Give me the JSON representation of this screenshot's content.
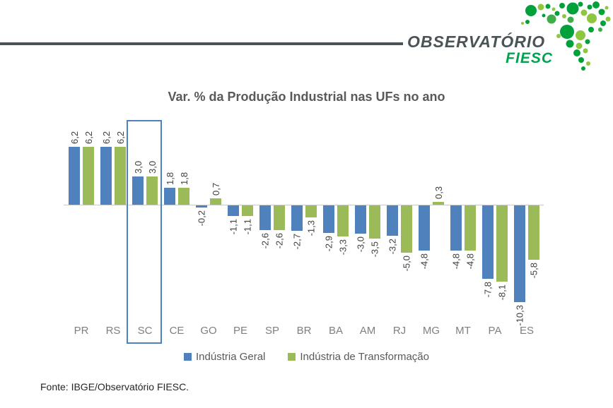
{
  "header": {
    "brand_primary": "OBSERVATÓRIO",
    "brand_secondary": "FIESC",
    "brand_colors": {
      "dark": "#4A5356",
      "fiesc_green": "#00A44F",
      "dot_dark": "#00A13A",
      "dot_mid": "#3FAE49",
      "dot_light": "#8DC63F"
    }
  },
  "chart_data": {
    "type": "bar",
    "title": "Var. % da Produção Industrial nas UFs no ano",
    "categories": [
      "PR",
      "RS",
      "SC",
      "CE",
      "GO",
      "PE",
      "SP",
      "BR",
      "BA",
      "AM",
      "RJ",
      "MG",
      "MT",
      "PA",
      "ES"
    ],
    "series": [
      {
        "name": "Indústria Geral",
        "color": "#4F81BD",
        "values": [
          6.2,
          6.2,
          3.0,
          1.8,
          -0.2,
          -1.1,
          -2.6,
          -2.7,
          -2.9,
          -3.0,
          -3.2,
          -4.8,
          -4.8,
          -7.8,
          -10.3
        ],
        "labels": [
          "6,2",
          "6,2",
          "3,0",
          "1,8",
          "-0,2",
          "-1,1",
          "-2,6",
          "-2,7",
          "-2,9",
          "-3,0",
          "-3,2",
          "-4,8",
          "-4,8",
          "-7,8",
          "-10,3"
        ]
      },
      {
        "name": "Indústria de Transformação",
        "color": "#9BBB59",
        "values": [
          6.2,
          6.2,
          3.0,
          1.8,
          0.7,
          -1.1,
          -2.6,
          -1.3,
          -3.3,
          -3.5,
          -5.0,
          0.3,
          -4.8,
          -8.1,
          -5.8
        ],
        "labels": [
          "6,2",
          "6,2",
          "3,0",
          "1,8",
          "0,7",
          "-1,1",
          "-2,6",
          "-1,3",
          "-3,3",
          "-3,5",
          "-5,0",
          "0,3",
          "-4,8",
          "-8,1",
          "-5,8"
        ]
      }
    ],
    "highlight_category": "SC",
    "value_label_rotation": -90,
    "decimal_separator": ",",
    "xlabel": "",
    "ylabel": "",
    "ylim": [
      -11,
      7
    ],
    "grid": false,
    "legend_position": "bottom"
  },
  "footer": {
    "source_text": "Fonte: IBGE/Observatório FIESC."
  }
}
